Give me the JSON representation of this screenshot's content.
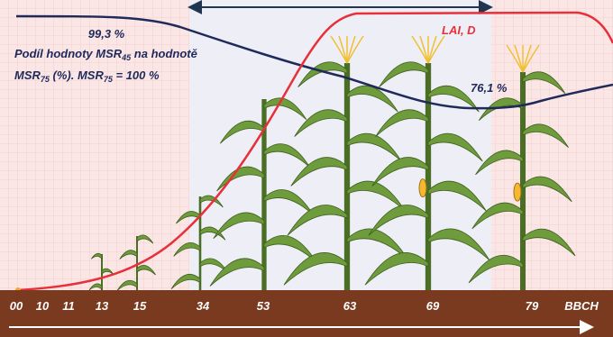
{
  "annotations": {
    "msr45_value": "99,3 %",
    "msr_caption": {
      "line1": [
        "Podíl hodnoty MSR",
        "45",
        " na hodnotě"
      ],
      "line2": [
        "MSR",
        "75",
        " (%). MSR",
        "75",
        " = 100 %"
      ]
    },
    "msr_end_value": "76,1 %",
    "lai_label": "LAI, D"
  },
  "bbch": {
    "stages": [
      "00",
      "10",
      "11",
      "13",
      "15",
      "34",
      "53",
      "63",
      "69",
      "79"
    ],
    "axis_label": "BBCH"
  }
}
